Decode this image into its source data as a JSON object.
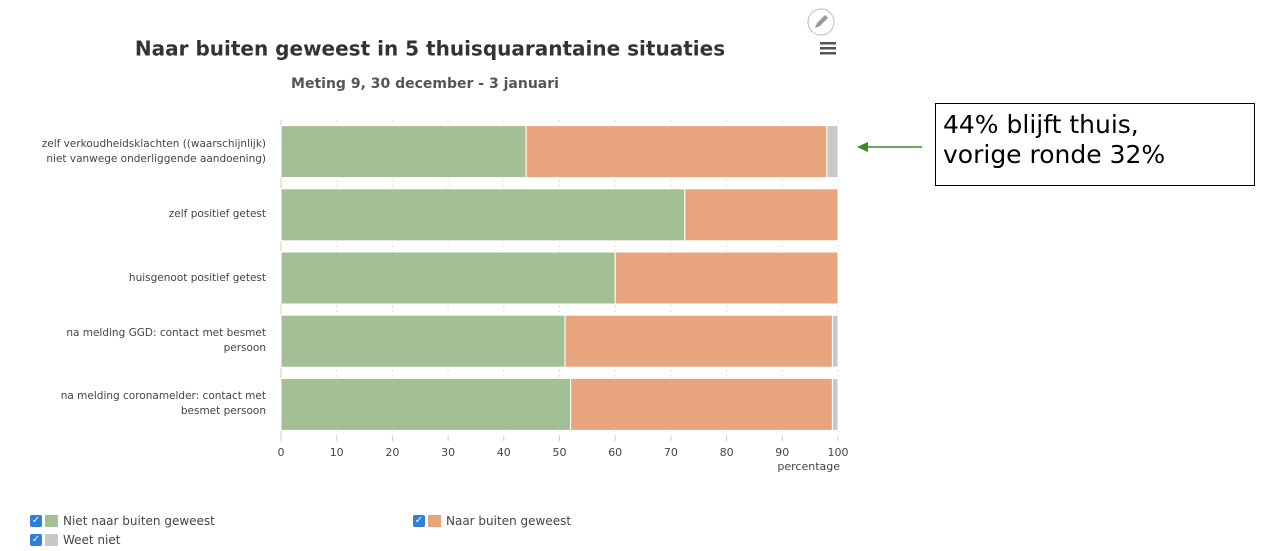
{
  "chart_data": {
    "type": "stacked_barh",
    "title": "Naar buiten geweest in 5 thuisquarantaine situaties",
    "subtitle": "Meting 9, 30 december - 3 januari",
    "xlabel": "percentage",
    "categories": [
      "zelf verkoudheidsklachten ((waarschijnlijk)\nniet vanwege onderliggende aandoening)",
      "zelf positief getest",
      "huisgenoot positief getest",
      "na melding GGD: contact met besmet\npersoon",
      "na melding coronamelder: contact met\nbesmet persoon"
    ],
    "series": [
      {
        "name": "Niet naar buiten geweest",
        "color": "#a3bf94",
        "values": [
          44,
          72.5,
          60,
          51,
          52
        ]
      },
      {
        "name": "Naar buiten geweest",
        "color": "#e8a47c",
        "values": [
          54,
          27.5,
          40,
          48,
          47
        ]
      },
      {
        "name": "Weet niet",
        "color": "#c8c8c8",
        "values": [
          2,
          0,
          0,
          1,
          1
        ]
      }
    ],
    "xlim": [
      0,
      100
    ],
    "xticks": [
      0,
      10,
      20,
      30,
      40,
      50,
      60,
      70,
      80,
      90,
      100
    ],
    "grid": true,
    "annotation": "44% blijft thuis,\nvorige ronde 32%"
  }
}
